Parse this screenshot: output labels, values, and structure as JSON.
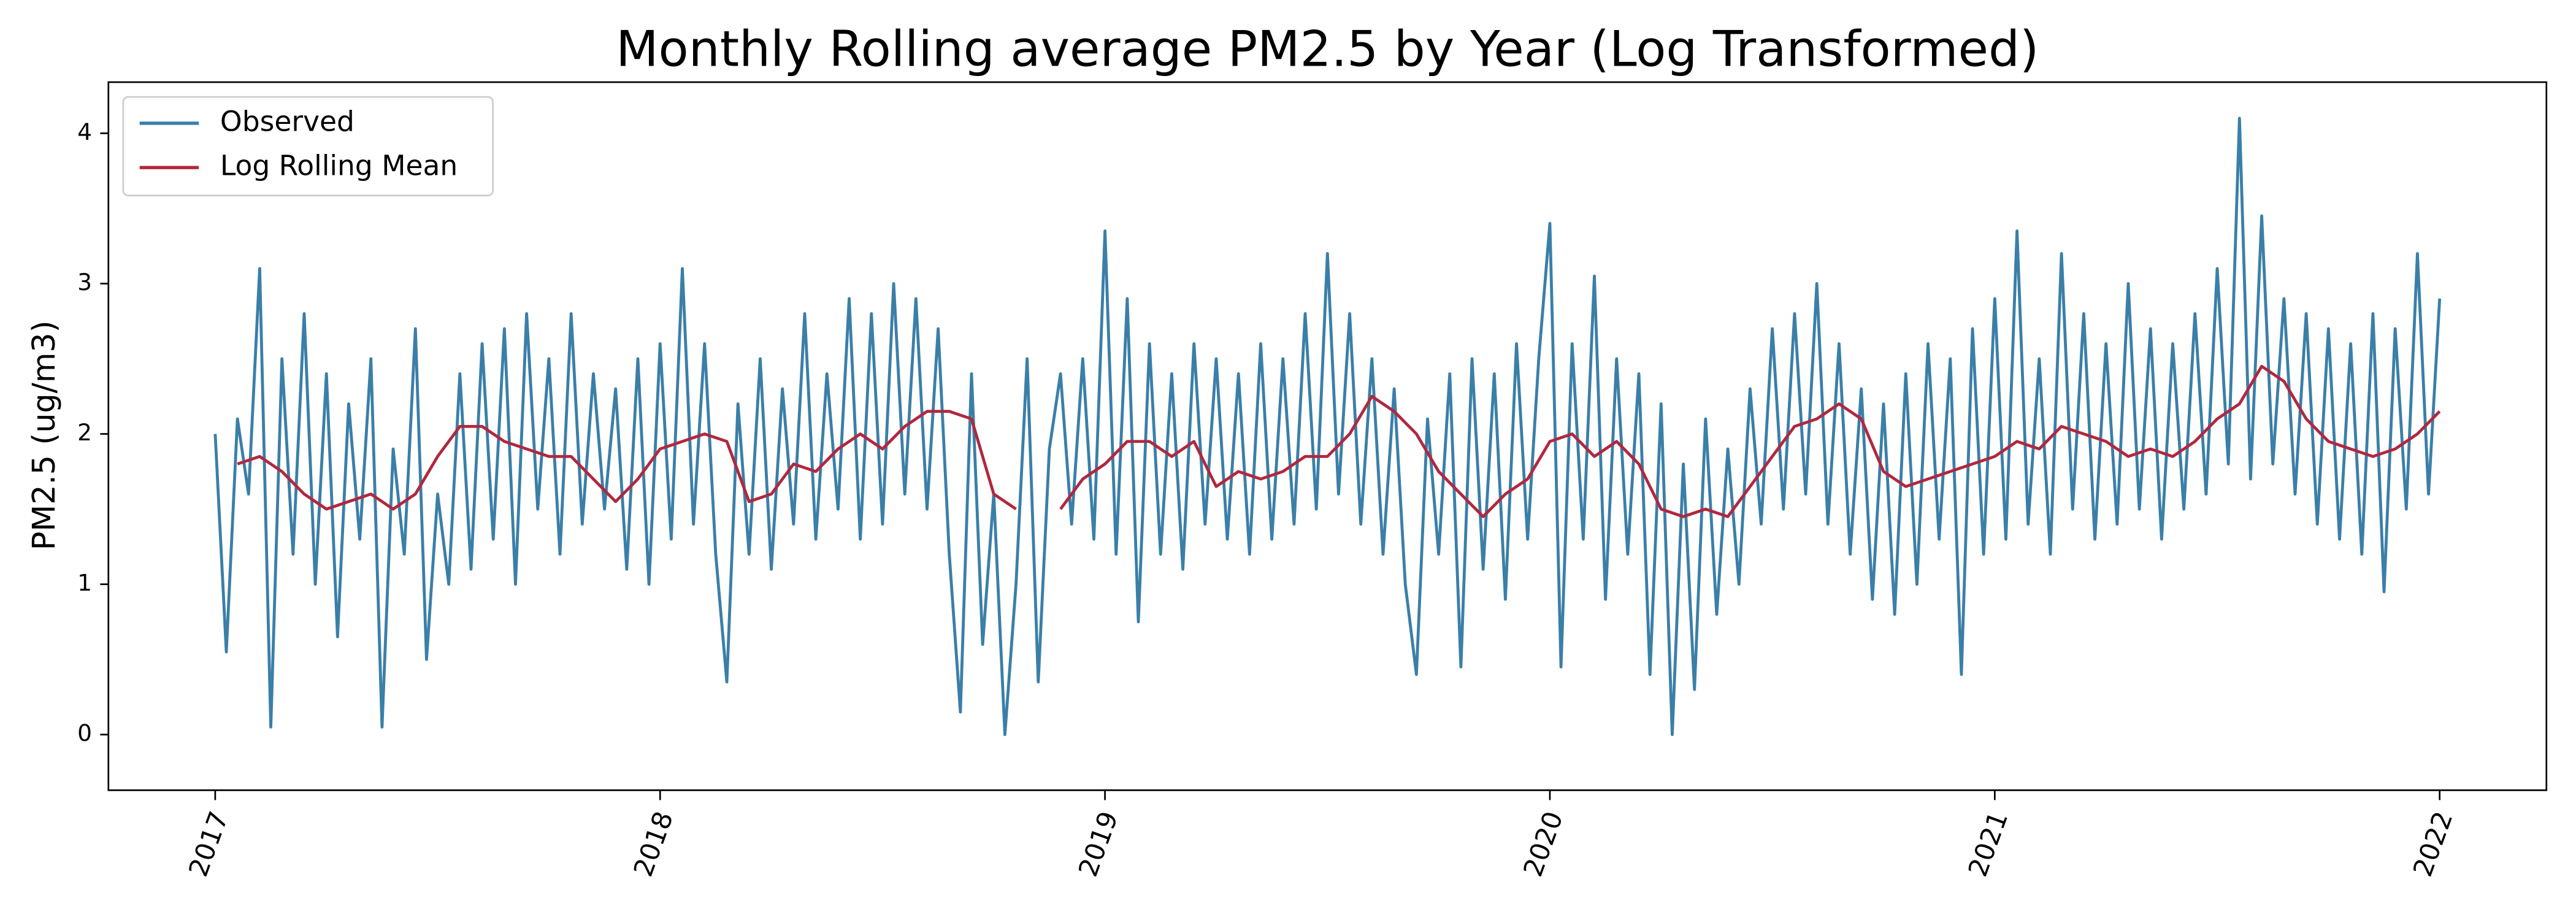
{
  "chart_data": {
    "type": "line",
    "title": "Monthly Rolling average PM2.5 by Year (Log Transformed)",
    "y_label": "PM2.5 (ug/m3)",
    "xlim": [
      2016.76,
      2022.24
    ],
    "xticks": [
      2017,
      2018,
      2019,
      2020,
      2021,
      2022
    ],
    "ylim": [
      -0.37,
      4.34
    ],
    "yticks": [
      0,
      1,
      2,
      3,
      4
    ],
    "grid": false,
    "legend": "upper left",
    "series": [
      {
        "name": "Observed",
        "color": "#3a7fa8",
        "x": [
          2017,
          2017.025,
          2017.05,
          2017.075,
          2017.1,
          2017.125,
          2017.15,
          2017.175,
          2017.2,
          2017.225,
          2017.25,
          2017.275,
          2017.3,
          2017.325,
          2017.35,
          2017.375,
          2017.4,
          2017.425,
          2017.45,
          2017.475,
          2017.5,
          2017.525,
          2017.55,
          2017.575,
          2017.6,
          2017.625,
          2017.65,
          2017.675,
          2017.7,
          2017.725,
          2017.75,
          2017.775,
          2017.8,
          2017.825,
          2017.85,
          2017.875,
          2017.9,
          2017.925,
          2017.95,
          2017.975,
          2018,
          2018.025,
          2018.05,
          2018.075,
          2018.1,
          2018.125,
          2018.15,
          2018.175,
          2018.2,
          2018.225,
          2018.25,
          2018.275,
          2018.3,
          2018.325,
          2018.35,
          2018.375,
          2018.4,
          2018.425,
          2018.45,
          2018.475,
          2018.5,
          2018.525,
          2018.55,
          2018.575,
          2018.6,
          2018.625,
          2018.65,
          2018.675,
          2018.7,
          2018.725,
          2018.75,
          2018.775,
          2018.8,
          2018.825,
          2018.85,
          2018.875,
          2018.9,
          2018.925,
          2018.95,
          2018.975,
          2019,
          2019.025,
          2019.05,
          2019.075,
          2019.1,
          2019.125,
          2019.15,
          2019.175,
          2019.2,
          2019.225,
          2019.25,
          2019.275,
          2019.3,
          2019.325,
          2019.35,
          2019.375,
          2019.4,
          2019.425,
          2019.45,
          2019.475,
          2019.5,
          2019.525,
          2019.55,
          2019.575,
          2019.6,
          2019.625,
          2019.65,
          2019.675,
          2019.7,
          2019.725,
          2019.75,
          2019.775,
          2019.8,
          2019.825,
          2019.85,
          2019.875,
          2019.9,
          2019.925,
          2019.95,
          2019.975,
          2020,
          2020.025,
          2020.05,
          2020.075,
          2020.1,
          2020.125,
          2020.15,
          2020.175,
          2020.2,
          2020.225,
          2020.25,
          2020.275,
          2020.3,
          2020.325,
          2020.35,
          2020.375,
          2020.4,
          2020.425,
          2020.45,
          2020.475,
          2020.5,
          2020.525,
          2020.55,
          2020.575,
          2020.6,
          2020.625,
          2020.65,
          2020.675,
          2020.7,
          2020.725,
          2020.75,
          2020.775,
          2020.8,
          2020.825,
          2020.85,
          2020.875,
          2020.9,
          2020.925,
          2020.95,
          2020.975,
          2021,
          2021.025,
          2021.05,
          2021.075,
          2021.1,
          2021.125,
          2021.15,
          2021.175,
          2021.2,
          2021.225,
          2021.25,
          2021.275,
          2021.3,
          2021.325,
          2021.35,
          2021.375,
          2021.4,
          2021.425,
          2021.45,
          2021.475,
          2021.5,
          2021.525,
          2021.55,
          2021.575,
          2021.6,
          2021.625,
          2021.65,
          2021.675,
          2021.7,
          2021.725,
          2021.75,
          2021.775,
          2021.8,
          2021.825,
          2021.85,
          2021.875,
          2021.9,
          2021.925,
          2021.95,
          2021.975,
          2022
        ],
        "values": [
          2.0,
          0.55,
          2.1,
          1.6,
          3.1,
          0.05,
          2.5,
          1.2,
          2.8,
          1.0,
          2.4,
          0.65,
          2.2,
          1.3,
          2.5,
          0.05,
          1.9,
          1.2,
          2.7,
          0.5,
          1.6,
          1.0,
          2.4,
          1.1,
          2.6,
          1.3,
          2.7,
          1.0,
          2.8,
          1.5,
          2.5,
          1.2,
          2.8,
          1.4,
          2.4,
          1.5,
          2.3,
          1.1,
          2.5,
          1.0,
          2.6,
          1.3,
          3.1,
          1.4,
          2.6,
          1.2,
          0.35,
          2.2,
          1.2,
          2.5,
          1.1,
          2.3,
          1.4,
          2.8,
          1.3,
          2.4,
          1.5,
          2.9,
          1.3,
          2.8,
          1.4,
          3.0,
          1.6,
          2.9,
          1.5,
          2.7,
          1.2,
          0.15,
          2.4,
          0.6,
          1.6,
          0.0,
          1.0,
          2.5,
          0.35,
          1.9,
          2.4,
          1.4,
          2.5,
          1.3,
          3.35,
          1.2,
          2.9,
          0.75,
          2.6,
          1.2,
          2.4,
          1.1,
          2.6,
          1.4,
          2.5,
          1.3,
          2.4,
          1.2,
          2.6,
          1.3,
          2.5,
          1.4,
          2.8,
          1.5,
          3.2,
          1.6,
          2.8,
          1.4,
          2.5,
          1.2,
          2.3,
          1.0,
          0.4,
          2.1,
          1.2,
          2.4,
          0.45,
          2.5,
          1.1,
          2.4,
          0.9,
          2.6,
          1.3,
          2.5,
          3.4,
          0.45,
          2.6,
          1.3,
          3.05,
          0.9,
          2.5,
          1.2,
          2.4,
          0.4,
          2.2,
          0.0,
          1.8,
          0.3,
          2.1,
          0.8,
          1.9,
          1.0,
          2.3,
          1.4,
          2.7,
          1.5,
          2.8,
          1.6,
          3.0,
          1.4,
          2.6,
          1.2,
          2.3,
          0.9,
          2.2,
          0.8,
          2.4,
          1.0,
          2.6,
          1.3,
          2.5,
          0.4,
          2.7,
          1.2,
          2.9,
          1.3,
          3.35,
          1.4,
          2.5,
          1.2,
          3.2,
          1.5,
          2.8,
          1.3,
          2.6,
          1.4,
          3.0,
          1.5,
          2.7,
          1.3,
          2.6,
          1.5,
          2.8,
          1.6,
          3.1,
          1.8,
          4.1,
          1.7,
          3.45,
          1.8,
          2.9,
          1.6,
          2.8,
          1.4,
          2.7,
          1.3,
          2.6,
          1.2,
          2.8,
          0.95,
          2.7,
          1.5,
          3.2,
          1.6,
          2.9
        ]
      },
      {
        "name": "Log Rolling Mean",
        "color": "#b0283f",
        "x": [
          2017.05,
          2017.1,
          2017.15,
          2017.2,
          2017.25,
          2017.3,
          2017.35,
          2017.4,
          2017.45,
          2017.5,
          2017.55,
          2017.6,
          2017.65,
          2017.7,
          2017.75,
          2017.8,
          2017.85,
          2017.9,
          2017.95,
          2018,
          2018.05,
          2018.1,
          2018.15,
          2018.2,
          2018.25,
          2018.3,
          2018.35,
          2018.4,
          2018.45,
          2018.5,
          2018.55,
          2018.6,
          2018.65,
          2018.7,
          2018.75,
          2018.8,
          2018.85,
          2018.9,
          2018.95,
          2019,
          2019.05,
          2019.1,
          2019.15,
          2019.2,
          2019.25,
          2019.3,
          2019.35,
          2019.4,
          2019.45,
          2019.5,
          2019.55,
          2019.6,
          2019.65,
          2019.7,
          2019.75,
          2019.8,
          2019.85,
          2019.9,
          2019.95,
          2020,
          2020.05,
          2020.1,
          2020.15,
          2020.2,
          2020.25,
          2020.3,
          2020.35,
          2020.4,
          2020.45,
          2020.5,
          2020.55,
          2020.6,
          2020.65,
          2020.7,
          2020.75,
          2020.8,
          2020.85,
          2020.9,
          2020.95,
          2021,
          2021.05,
          2021.1,
          2021.15,
          2021.2,
          2021.25,
          2021.3,
          2021.35,
          2021.4,
          2021.45,
          2021.5,
          2021.55,
          2021.6,
          2021.65,
          2021.7,
          2021.75,
          2021.8,
          2021.85,
          2021.9,
          2021.95,
          2022
        ],
        "values": [
          1.8,
          1.85,
          1.75,
          1.6,
          1.5,
          1.55,
          1.6,
          1.5,
          1.6,
          1.85,
          2.05,
          2.05,
          1.95,
          1.9,
          1.85,
          1.85,
          1.7,
          1.55,
          1.7,
          1.9,
          1.95,
          2.0,
          1.95,
          1.55,
          1.6,
          1.8,
          1.75,
          1.9,
          2.0,
          1.9,
          2.05,
          2.15,
          2.15,
          2.1,
          1.6,
          1.5,
          null,
          1.5,
          1.7,
          1.8,
          1.95,
          1.95,
          1.85,
          1.95,
          1.65,
          1.75,
          1.7,
          1.75,
          1.85,
          1.85,
          2.0,
          2.25,
          2.15,
          2.0,
          1.75,
          1.6,
          1.45,
          1.6,
          1.7,
          1.95,
          2.0,
          1.85,
          1.95,
          1.8,
          1.5,
          1.45,
          1.5,
          1.45,
          1.65,
          1.85,
          2.05,
          2.1,
          2.2,
          2.1,
          1.75,
          1.65,
          1.7,
          1.75,
          1.8,
          1.85,
          1.95,
          1.9,
          2.05,
          2.0,
          1.95,
          1.85,
          1.9,
          1.85,
          1.95,
          2.1,
          2.2,
          2.45,
          2.35,
          2.1,
          1.95,
          1.9,
          1.85,
          1.9,
          2.0,
          2.15
        ]
      }
    ]
  }
}
